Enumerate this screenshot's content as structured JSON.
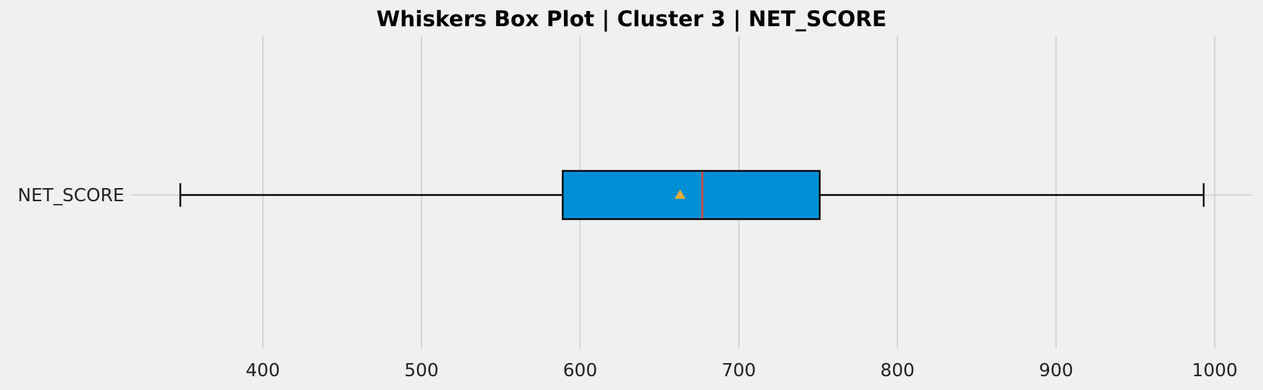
{
  "chart_data": {
    "type": "box",
    "orientation": "horizontal",
    "title": "Whiskers Box Plot | Cluster 3 | NET_SCORE",
    "xlabel": "",
    "ylabel": "",
    "categories": [
      "NET_SCORE"
    ],
    "xlim": [
      317,
      1023
    ],
    "xticks": [
      400,
      500,
      600,
      700,
      800,
      900,
      1000
    ],
    "xtick_labels": [
      "400",
      "500",
      "600",
      "700",
      "800",
      "900",
      "1000"
    ],
    "grid": true,
    "boxes": [
      {
        "label": "NET_SCORE",
        "whisker_low": 348,
        "q1": 589,
        "median": 677,
        "q3": 751,
        "whisker_high": 993,
        "mean": 663
      }
    ],
    "colors": {
      "box_fill": "#008fd5",
      "median": "#c0504d",
      "mean_marker": "#e5ae38",
      "whisker": "#000000",
      "background": "#f0f0f0",
      "grid": "#cbcbcb"
    }
  }
}
